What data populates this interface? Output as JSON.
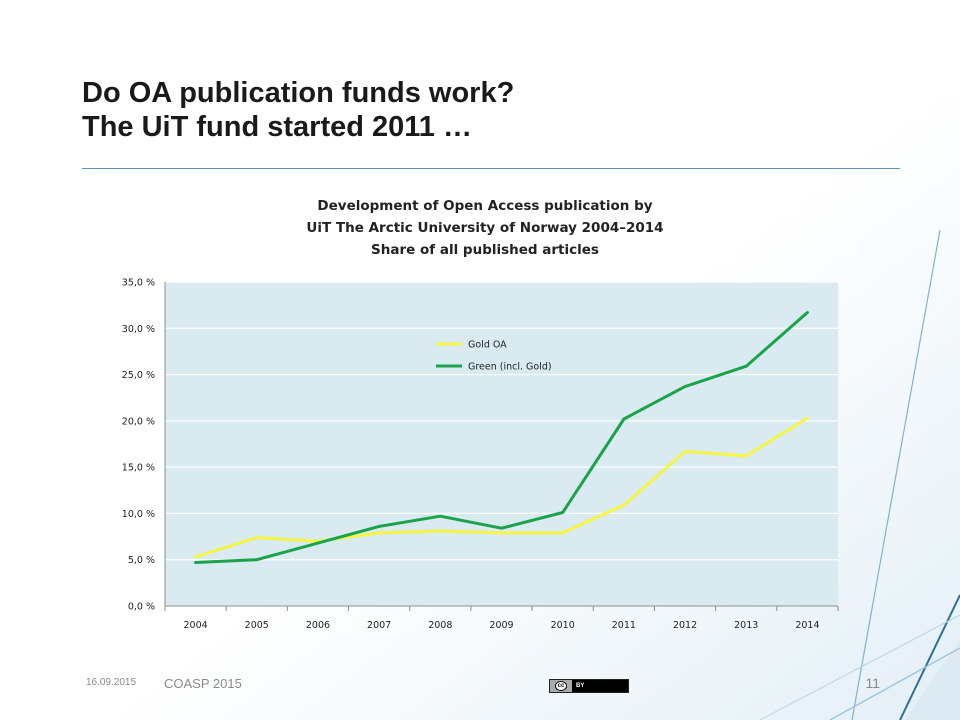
{
  "slide": {
    "title_line1": "Do OA publication funds work?",
    "title_line2": "The UiT fund started 2011 …",
    "footer_date": "16.09.2015",
    "footer_event": "COASP 2015",
    "page_number": "11",
    "license_badge": {
      "left": "cc",
      "right": "BY"
    },
    "accent_color": "#5d93b5"
  },
  "chart_data": {
    "type": "line",
    "title": [
      "Development of Open Access publication by",
      "UiT The Arctic University of Norway 2004–2014",
      "Share of all published articles"
    ],
    "categories": [
      "2004",
      "2005",
      "2006",
      "2007",
      "2008",
      "2009",
      "2010",
      "2011",
      "2012",
      "2013",
      "2014"
    ],
    "y_ticks": [
      "0,0 %",
      "5,0 %",
      "10,0 %",
      "15,0 %",
      "20,0 %",
      "25,0 %",
      "30,0 %",
      "35,0 %"
    ],
    "ylim": [
      0,
      35
    ],
    "grid": true,
    "legend_position": "top-center inside plot",
    "plot_background": "#d9ebf1",
    "series": [
      {
        "name": "Gold OA",
        "color": "#f5f542",
        "values": [
          5.3,
          7.4,
          7.0,
          7.9,
          8.1,
          7.9,
          7.9,
          10.9,
          16.7,
          16.2,
          20.3
        ]
      },
      {
        "name": "Green (incl. Gold)",
        "color": "#1aa34a",
        "values": [
          4.7,
          5.0,
          6.8,
          8.6,
          9.7,
          8.4,
          10.1,
          20.2,
          23.7,
          25.9,
          31.7
        ]
      }
    ]
  }
}
